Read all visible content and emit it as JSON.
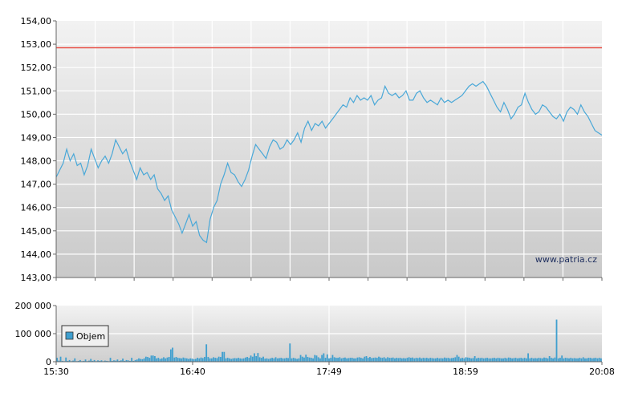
{
  "watermark": "www.patria.cz",
  "chart_data": [
    {
      "type": "line",
      "title": "",
      "xlabel": "",
      "ylabel": "",
      "ylim": [
        143,
        154
      ],
      "yticks": [
        "154,00",
        "153,00",
        "152,00",
        "151,00",
        "150,00",
        "149,00",
        "148,00",
        "147,00",
        "146,00",
        "145,00",
        "144,00",
        "143,00"
      ],
      "reference_line": {
        "value": 152.85,
        "color": "#e8524a"
      },
      "line_color": "#4aa8d8",
      "series": [
        {
          "name": "",
          "points": [
            [
              0,
              147.3
            ],
            [
              2,
              147.9
            ],
            [
              3,
              148.5
            ],
            [
              4,
              148.0
            ],
            [
              5,
              148.3
            ],
            [
              6,
              147.8
            ],
            [
              7,
              147.9
            ],
            [
              8,
              147.4
            ],
            [
              9,
              147.8
            ],
            [
              10,
              148.5
            ],
            [
              11,
              148.1
            ],
            [
              12,
              147.7
            ],
            [
              13,
              148.0
            ],
            [
              14,
              148.2
            ],
            [
              15,
              147.9
            ],
            [
              16,
              148.3
            ],
            [
              17,
              148.9
            ],
            [
              18,
              148.6
            ],
            [
              19,
              148.3
            ],
            [
              20,
              148.5
            ],
            [
              21,
              148.0
            ],
            [
              22,
              147.6
            ],
            [
              23,
              147.2
            ],
            [
              24,
              147.7
            ],
            [
              25,
              147.4
            ],
            [
              26,
              147.5
            ],
            [
              27,
              147.2
            ],
            [
              28,
              147.4
            ],
            [
              29,
              146.8
            ],
            [
              30,
              146.6
            ],
            [
              31,
              146.3
            ],
            [
              32,
              146.5
            ],
            [
              33,
              145.9
            ],
            [
              34,
              145.6
            ],
            [
              35,
              145.3
            ],
            [
              36,
              144.9
            ],
            [
              37,
              145.3
            ],
            [
              38,
              145.7
            ],
            [
              39,
              145.2
            ],
            [
              40,
              145.4
            ],
            [
              41,
              144.8
            ],
            [
              42,
              144.6
            ],
            [
              43,
              144.5
            ],
            [
              44,
              145.5
            ],
            [
              45,
              146.0
            ],
            [
              46,
              146.3
            ],
            [
              47,
              147.0
            ],
            [
              48,
              147.4
            ],
            [
              49,
              147.9
            ],
            [
              50,
              147.5
            ],
            [
              51,
              147.4
            ],
            [
              52,
              147.1
            ],
            [
              53,
              146.9
            ],
            [
              54,
              147.2
            ],
            [
              55,
              147.6
            ],
            [
              56,
              148.2
            ],
            [
              57,
              148.7
            ],
            [
              58,
              148.5
            ],
            [
              59,
              148.3
            ],
            [
              60,
              148.1
            ],
            [
              61,
              148.6
            ],
            [
              62,
              148.9
            ],
            [
              63,
              148.8
            ],
            [
              64,
              148.5
            ],
            [
              65,
              148.6
            ],
            [
              66,
              148.9
            ],
            [
              67,
              148.7
            ],
            [
              68,
              148.9
            ],
            [
              69,
              149.2
            ],
            [
              70,
              148.8
            ],
            [
              71,
              149.4
            ],
            [
              72,
              149.7
            ],
            [
              73,
              149.3
            ],
            [
              74,
              149.6
            ],
            [
              75,
              149.5
            ],
            [
              76,
              149.7
            ],
            [
              77,
              149.4
            ],
            [
              78,
              149.6
            ],
            [
              79,
              149.8
            ],
            [
              80,
              150.0
            ],
            [
              81,
              150.2
            ],
            [
              82,
              150.4
            ],
            [
              83,
              150.3
            ],
            [
              84,
              150.7
            ],
            [
              85,
              150.5
            ],
            [
              86,
              150.8
            ],
            [
              87,
              150.6
            ],
            [
              88,
              150.7
            ],
            [
              89,
              150.6
            ],
            [
              90,
              150.8
            ],
            [
              91,
              150.4
            ],
            [
              92,
              150.6
            ],
            [
              93,
              150.7
            ],
            [
              94,
              151.2
            ],
            [
              95,
              150.9
            ],
            [
              96,
              150.8
            ],
            [
              97,
              150.9
            ],
            [
              98,
              150.7
            ],
            [
              99,
              150.8
            ],
            [
              100,
              151.0
            ],
            [
              101,
              150.6
            ],
            [
              102,
              150.6
            ],
            [
              103,
              150.9
            ],
            [
              104,
              151.0
            ],
            [
              105,
              150.7
            ],
            [
              106,
              150.5
            ],
            [
              107,
              150.6
            ],
            [
              108,
              150.5
            ],
            [
              109,
              150.4
            ],
            [
              110,
              150.7
            ],
            [
              111,
              150.5
            ],
            [
              112,
              150.6
            ],
            [
              113,
              150.5
            ],
            [
              114,
              150.6
            ],
            [
              115,
              150.7
            ],
            [
              116,
              150.8
            ],
            [
              117,
              151.0
            ],
            [
              118,
              151.2
            ],
            [
              119,
              151.3
            ],
            [
              120,
              151.2
            ],
            [
              121,
              151.3
            ],
            [
              122,
              151.4
            ],
            [
              123,
              151.2
            ],
            [
              124,
              150.9
            ],
            [
              125,
              150.6
            ],
            [
              126,
              150.3
            ],
            [
              127,
              150.1
            ],
            [
              128,
              150.5
            ],
            [
              129,
              150.2
            ],
            [
              130,
              149.8
            ],
            [
              131,
              150.0
            ],
            [
              132,
              150.3
            ],
            [
              133,
              150.4
            ],
            [
              134,
              150.9
            ],
            [
              135,
              150.5
            ],
            [
              136,
              150.2
            ],
            [
              137,
              150.0
            ],
            [
              138,
              150.1
            ],
            [
              139,
              150.4
            ],
            [
              140,
              150.3
            ],
            [
              141,
              150.1
            ],
            [
              142,
              149.9
            ],
            [
              143,
              149.8
            ],
            [
              144,
              150.0
            ],
            [
              145,
              149.7
            ],
            [
              146,
              150.1
            ],
            [
              147,
              150.3
            ],
            [
              148,
              150.2
            ],
            [
              149,
              150.0
            ],
            [
              150,
              150.4
            ],
            [
              151,
              150.1
            ],
            [
              152,
              149.9
            ],
            [
              153,
              149.6
            ],
            [
              154,
              149.3
            ],
            [
              155,
              149.2
            ],
            [
              156,
              149.1
            ]
          ]
        }
      ]
    },
    {
      "type": "bar",
      "title": "",
      "xlabel": "",
      "ylabel": "",
      "ylim": [
        0,
        200000
      ],
      "yticks": [
        "200 000",
        "100 000",
        "0"
      ],
      "xticks": [
        "15:30",
        "16:40",
        "17:49",
        "18:59",
        "20:08"
      ],
      "legend": [
        "Objem"
      ],
      "legend_position": "left",
      "bar_color": "#3f9fcf",
      "values": [
        14000,
        4000,
        18000,
        3000,
        2000,
        15000,
        3000,
        6000,
        2000,
        4000,
        12000,
        2000,
        3000,
        6000,
        2000,
        3000,
        8000,
        2000,
        4000,
        10000,
        3000,
        6000,
        2000,
        5000,
        3000,
        5000,
        2000,
        4000,
        3000,
        2000,
        14000,
        3000,
        5000,
        4000,
        8000,
        3000,
        5000,
        11000,
        3000,
        6000,
        5000,
        3000,
        14000,
        3000,
        6000,
        8000,
        12000,
        10000,
        9000,
        12000,
        18000,
        17000,
        14000,
        22000,
        22000,
        20000,
        12000,
        14000,
        10000,
        12000,
        16000,
        12000,
        15000,
        17000,
        44000,
        50000,
        15000,
        17000,
        14000,
        13000,
        12000,
        15000,
        13000,
        12000,
        10000,
        12000,
        11000,
        9000,
        10000,
        14000,
        12000,
        15000,
        13000,
        17000,
        62000,
        17000,
        12000,
        12000,
        16000,
        14000,
        13000,
        18000,
        17000,
        35000,
        35000,
        12000,
        14000,
        12000,
        10000,
        12000,
        13000,
        12000,
        14000,
        12000,
        11000,
        12000,
        15000,
        17000,
        14000,
        22000,
        18000,
        30000,
        20000,
        31000,
        16000,
        14000,
        18000,
        11000,
        12000,
        10000,
        12000,
        14000,
        12000,
        16000,
        12000,
        13000,
        14000,
        12000,
        12000,
        14000,
        13000,
        65000,
        12000,
        14000,
        12000,
        10000,
        12000,
        24000,
        18000,
        15000,
        25000,
        17000,
        15000,
        14000,
        12000,
        24000,
        22000,
        16000,
        12000,
        24000,
        30000,
        14000,
        26000,
        12000,
        14000,
        24000,
        16000,
        14000,
        14000,
        16000,
        12000,
        14000,
        15000,
        12000,
        13000,
        14000,
        14000,
        12000,
        12000,
        15000,
        16000,
        14000,
        12000,
        18000,
        20000,
        14000,
        17000,
        13000,
        14000,
        15000,
        14000,
        18000,
        15000,
        14000,
        16000,
        12000,
        16000,
        14000,
        14000,
        15000,
        12000,
        14000,
        13000,
        14000,
        12000,
        13000,
        12000,
        14000,
        16000,
        14000,
        15000,
        12000,
        14000,
        13000,
        15000,
        12000,
        14000,
        13000,
        14000,
        12000,
        14000,
        13000,
        12000,
        12000,
        14000,
        12000,
        13000,
        12000,
        15000,
        13000,
        14000,
        12000,
        13000,
        14000,
        16000,
        24000,
        18000,
        12000,
        14000,
        12000,
        16000,
        15000,
        14000,
        12000,
        13000,
        20000,
        12000,
        14000,
        13000,
        14000,
        12000,
        13000,
        14000,
        12000,
        12000,
        13000,
        14000,
        12000,
        14000,
        13000,
        12000,
        12000,
        14000,
        12000,
        15000,
        14000,
        12000,
        13000,
        14000,
        12000,
        13000,
        14000,
        12000,
        14000,
        12000,
        30000,
        12000,
        14000,
        12000,
        13000,
        12000,
        14000,
        13000,
        12000,
        15000,
        14000,
        12000,
        20000,
        14000,
        12000,
        15000,
        150000,
        12000,
        14000,
        22000,
        12000,
        14000,
        13000,
        12000,
        14000,
        12000,
        13000,
        12000,
        12000,
        14000,
        12000,
        16000,
        12000,
        12000,
        14000,
        14000,
        12000,
        13000,
        14000,
        12000,
        14000,
        12000
      ]
    }
  ]
}
